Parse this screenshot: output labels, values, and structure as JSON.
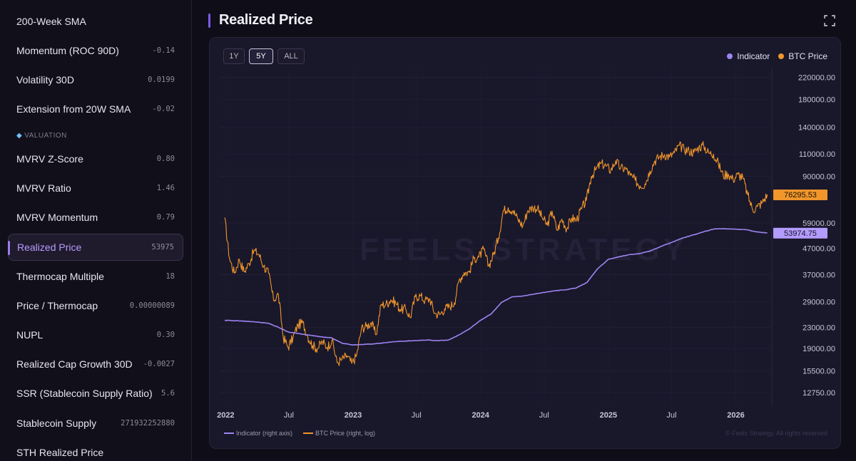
{
  "sidebar": {
    "items": [
      {
        "label": "200-Week SMA",
        "value": ""
      },
      {
        "label": "Momentum (ROC 90D)",
        "value": "-0.14"
      },
      {
        "label": "Volatility 30D",
        "value": "0.0199"
      },
      {
        "label": "Extension from 20W SMA",
        "value": "-0.02"
      },
      {
        "label": "MVRV Z-Score",
        "value": "0.80"
      },
      {
        "label": "MVRV Ratio",
        "value": "1.46"
      },
      {
        "label": "MVRV Momentum",
        "value": "0.79"
      },
      {
        "label": "Realized Price",
        "value": "53975"
      },
      {
        "label": "Thermocap Multiple",
        "value": "18"
      },
      {
        "label": "Price / Thermocap",
        "value": "0.00000089"
      },
      {
        "label": "NUPL",
        "value": "0.30"
      },
      {
        "label": "Realized Cap Growth 30D",
        "value": "-0.0027"
      },
      {
        "label": "SSR (Stablecoin Supply Ratio)",
        "value": "5.6"
      },
      {
        "label": "Stablecoin Supply",
        "value": "271932252880"
      },
      {
        "label": "STH Realized Price",
        "value": ""
      }
    ],
    "section_label": "VALUATION",
    "section_icon": "gem-icon",
    "active_index": 7
  },
  "header": {
    "title": "Realized Price",
    "expand_icon": "expand-icon"
  },
  "range_buttons": [
    {
      "label": "1Y",
      "active": false
    },
    {
      "label": "5Y",
      "active": true
    },
    {
      "label": "ALL",
      "active": false
    }
  ],
  "legend": {
    "indicator_label": "Indicator",
    "btc_label": "BTC Price",
    "bottom_indicator_label": "Indicator (right axis)",
    "bottom_btc_label": "BTC Price (right, log)"
  },
  "watermark": "FEELS STRATEGY",
  "copyright": "© Feels Strategy. All rights reserved",
  "colors": {
    "accent": "#9b7cf0",
    "indicator": "#9d85f2",
    "btc": "#f0962b",
    "background": "#0f0d18",
    "panel": "#19172a"
  },
  "chart_data": {
    "type": "line",
    "y_scale": "log",
    "ylim": [
      11500,
      240000
    ],
    "xlim": [
      "2021-12-15",
      "2026-04-10"
    ],
    "y_ticks": [
      "220000.00",
      "180000.00",
      "140000.00",
      "110000.00",
      "90000.00",
      "59000.00",
      "47000.00",
      "37000.00",
      "29000.00",
      "23000.00",
      "19000.00",
      "15500.00",
      "12750.00"
    ],
    "x_ticks": [
      {
        "label": "2022",
        "date": "2022-01-01",
        "bold": true
      },
      {
        "label": "Jul",
        "date": "2022-07-01",
        "bold": false
      },
      {
        "label": "2023",
        "date": "2023-01-01",
        "bold": true
      },
      {
        "label": "Jul",
        "date": "2023-07-01",
        "bold": false
      },
      {
        "label": "2024",
        "date": "2024-01-01",
        "bold": true
      },
      {
        "label": "Jul",
        "date": "2024-07-01",
        "bold": false
      },
      {
        "label": "2025",
        "date": "2025-01-01",
        "bold": true
      },
      {
        "label": "Jul",
        "date": "2025-07-01",
        "bold": false
      },
      {
        "label": "2026",
        "date": "2026-01-01",
        "bold": true
      }
    ],
    "last_values": {
      "btc": "76295.53",
      "indicator": "53974.75"
    },
    "series": [
      {
        "name": "BTC Price",
        "axis": "right, log",
        "color": "#f0962b",
        "points": [
          [
            "2021-12-29",
            62000
          ],
          [
            "2022-01-12",
            43000
          ],
          [
            "2022-01-26",
            37500
          ],
          [
            "2022-02-09",
            42500
          ],
          [
            "2022-02-23",
            38000
          ],
          [
            "2022-03-09",
            41000
          ],
          [
            "2022-03-23",
            46000
          ],
          [
            "2022-04-06",
            44500
          ],
          [
            "2022-04-20",
            40000
          ],
          [
            "2022-05-04",
            37500
          ],
          [
            "2022-05-18",
            29500
          ],
          [
            "2022-06-01",
            31000
          ],
          [
            "2022-06-15",
            21000
          ],
          [
            "2022-06-29",
            19200
          ],
          [
            "2022-07-13",
            21000
          ],
          [
            "2022-07-27",
            23500
          ],
          [
            "2022-08-10",
            24000
          ],
          [
            "2022-08-24",
            21200
          ],
          [
            "2022-09-07",
            19500
          ],
          [
            "2022-09-21",
            19000
          ],
          [
            "2022-10-05",
            20200
          ],
          [
            "2022-10-19",
            19200
          ],
          [
            "2022-11-02",
            20500
          ],
          [
            "2022-11-16",
            16700
          ],
          [
            "2022-11-30",
            17200
          ],
          [
            "2022-12-14",
            17800
          ],
          [
            "2022-12-28",
            16600
          ],
          [
            "2023-01-11",
            17800
          ],
          [
            "2023-01-25",
            22800
          ],
          [
            "2023-02-08",
            23200
          ],
          [
            "2023-02-22",
            24000
          ],
          [
            "2023-03-08",
            21500
          ],
          [
            "2023-03-22",
            28200
          ],
          [
            "2023-04-05",
            28300
          ],
          [
            "2023-04-19",
            29500
          ],
          [
            "2023-05-03",
            28700
          ],
          [
            "2023-05-17",
            27000
          ],
          [
            "2023-05-31",
            27200
          ],
          [
            "2023-06-14",
            25100
          ],
          [
            "2023-06-28",
            30300
          ],
          [
            "2023-07-12",
            30600
          ],
          [
            "2023-07-26",
            29300
          ],
          [
            "2023-08-09",
            29700
          ],
          [
            "2023-08-23",
            26100
          ],
          [
            "2023-09-06",
            25800
          ],
          [
            "2023-09-20",
            27200
          ],
          [
            "2023-10-04",
            27700
          ],
          [
            "2023-10-18",
            28700
          ],
          [
            "2023-11-01",
            35400
          ],
          [
            "2023-11-15",
            37700
          ],
          [
            "2023-11-29",
            37800
          ],
          [
            "2023-12-13",
            42900
          ],
          [
            "2023-12-27",
            43400
          ],
          [
            "2024-01-10",
            46500
          ],
          [
            "2024-01-24",
            40000
          ],
          [
            "2024-02-07",
            44300
          ],
          [
            "2024-02-21",
            51500
          ],
          [
            "2024-03-06",
            66000
          ],
          [
            "2024-03-20",
            67800
          ],
          [
            "2024-04-03",
            66000
          ],
          [
            "2024-04-17",
            61000
          ],
          [
            "2024-05-01",
            57500
          ],
          [
            "2024-05-15",
            66000
          ],
          [
            "2024-05-29",
            68000
          ],
          [
            "2024-06-12",
            67300
          ],
          [
            "2024-06-26",
            61800
          ],
          [
            "2024-07-10",
            57800
          ],
          [
            "2024-07-24",
            65700
          ],
          [
            "2024-08-07",
            55200
          ],
          [
            "2024-08-21",
            61100
          ],
          [
            "2024-09-04",
            56000
          ],
          [
            "2024-09-18",
            61700
          ],
          [
            "2024-10-02",
            60600
          ],
          [
            "2024-10-16",
            67000
          ],
          [
            "2024-10-30",
            72300
          ],
          [
            "2024-11-13",
            90000
          ],
          [
            "2024-11-27",
            96000
          ],
          [
            "2024-12-11",
            101000
          ],
          [
            "2024-12-25",
            98800
          ],
          [
            "2025-01-08",
            95000
          ],
          [
            "2025-01-22",
            103600
          ],
          [
            "2025-02-05",
            96800
          ],
          [
            "2025-02-19",
            96600
          ],
          [
            "2025-03-05",
            90600
          ],
          [
            "2025-03-19",
            86800
          ],
          [
            "2025-04-02",
            82500
          ],
          [
            "2025-04-16",
            84000
          ],
          [
            "2025-04-30",
            94500
          ],
          [
            "2025-05-14",
            103500
          ],
          [
            "2025-05-28",
            107500
          ],
          [
            "2025-06-11",
            109500
          ],
          [
            "2025-06-25",
            107300
          ],
          [
            "2025-07-09",
            111300
          ],
          [
            "2025-07-23",
            118800
          ],
          [
            "2025-08-06",
            114900
          ],
          [
            "2025-08-20",
            113300
          ],
          [
            "2025-09-03",
            111700
          ],
          [
            "2025-09-17",
            116900
          ],
          [
            "2025-10-01",
            118600
          ],
          [
            "2025-10-15",
            111000
          ],
          [
            "2025-10-29",
            110000
          ],
          [
            "2025-11-12",
            101000
          ],
          [
            "2025-11-26",
            90500
          ],
          [
            "2025-12-10",
            92000
          ],
          [
            "2025-12-24",
            87500
          ],
          [
            "2026-01-07",
            91500
          ],
          [
            "2026-01-21",
            89000
          ],
          [
            "2026-02-04",
            76000
          ],
          [
            "2026-02-18",
            66500
          ],
          [
            "2026-03-04",
            68500
          ],
          [
            "2026-03-18",
            71000
          ],
          [
            "2026-04-01",
            76300
          ]
        ]
      },
      {
        "name": "Indicator",
        "axis": "right axis",
        "color": "#9d85f2",
        "points": [
          [
            "2021-12-29",
            24500
          ],
          [
            "2022-02-01",
            24400
          ],
          [
            "2022-03-01",
            24300
          ],
          [
            "2022-04-01",
            24100
          ],
          [
            "2022-05-01",
            23900
          ],
          [
            "2022-06-01",
            23000
          ],
          [
            "2022-07-01",
            22000
          ],
          [
            "2022-08-01",
            21700
          ],
          [
            "2022-09-01",
            21400
          ],
          [
            "2022-10-01",
            21100
          ],
          [
            "2022-11-01",
            20900
          ],
          [
            "2022-12-01",
            19900
          ],
          [
            "2023-01-01",
            19600
          ],
          [
            "2023-02-01",
            19700
          ],
          [
            "2023-03-01",
            19800
          ],
          [
            "2023-04-01",
            20000
          ],
          [
            "2023-05-01",
            20200
          ],
          [
            "2023-06-01",
            20300
          ],
          [
            "2023-07-01",
            20400
          ],
          [
            "2023-08-01",
            20500
          ],
          [
            "2023-09-01",
            20400
          ],
          [
            "2023-10-01",
            20500
          ],
          [
            "2023-11-01",
            21500
          ],
          [
            "2023-12-01",
            22700
          ],
          [
            "2024-01-01",
            24500
          ],
          [
            "2024-02-01",
            26000
          ],
          [
            "2024-03-01",
            28800
          ],
          [
            "2024-04-01",
            30300
          ],
          [
            "2024-05-01",
            30500
          ],
          [
            "2024-06-01",
            31000
          ],
          [
            "2024-07-01",
            31500
          ],
          [
            "2024-08-01",
            32000
          ],
          [
            "2024-09-01",
            32300
          ],
          [
            "2024-10-01",
            32800
          ],
          [
            "2024-11-01",
            34500
          ],
          [
            "2024-12-01",
            39000
          ],
          [
            "2025-01-01",
            42500
          ],
          [
            "2025-02-01",
            43500
          ],
          [
            "2025-03-01",
            44300
          ],
          [
            "2025-04-01",
            44800
          ],
          [
            "2025-05-01",
            45800
          ],
          [
            "2025-06-01",
            47800
          ],
          [
            "2025-07-01",
            49500
          ],
          [
            "2025-08-01",
            51500
          ],
          [
            "2025-09-01",
            53000
          ],
          [
            "2025-10-01",
            54500
          ],
          [
            "2025-11-01",
            56000
          ],
          [
            "2025-12-01",
            56000
          ],
          [
            "2026-01-01",
            55800
          ],
          [
            "2026-02-01",
            55500
          ],
          [
            "2026-03-01",
            54500
          ],
          [
            "2026-04-01",
            53975
          ]
        ]
      }
    ]
  }
}
